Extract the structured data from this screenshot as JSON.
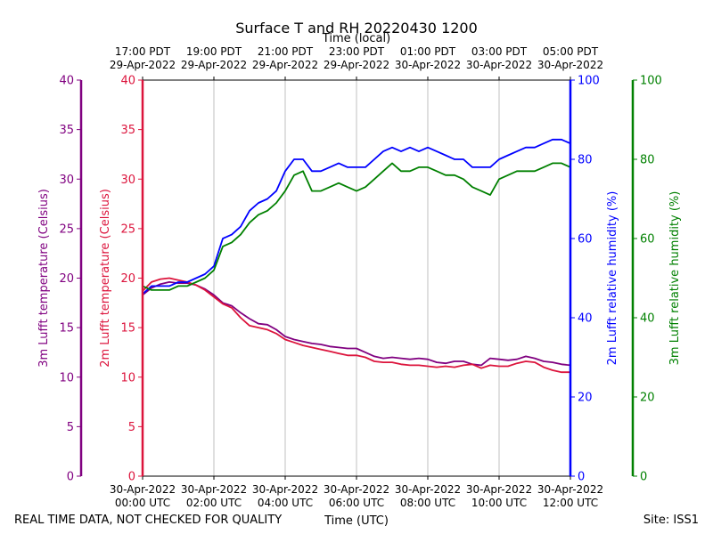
{
  "chart_data": {
    "type": "line",
    "title": "Surface T and RH 20220430 1200",
    "top_xlabel": "Time (local)",
    "xlabel": "Time (UTC)",
    "footer_left": "REAL TIME DATA, NOT CHECKED FOR QUALITY",
    "footer_right": "Site: ISS1",
    "x_hours": [
      0,
      12
    ],
    "bottom_ticks": [
      {
        "date": "30-Apr-2022",
        "time": "00:00 UTC"
      },
      {
        "date": "30-Apr-2022",
        "time": "02:00 UTC"
      },
      {
        "date": "30-Apr-2022",
        "time": "04:00 UTC"
      },
      {
        "date": "30-Apr-2022",
        "time": "06:00 UTC"
      },
      {
        "date": "30-Apr-2022",
        "time": "08:00 UTC"
      },
      {
        "date": "30-Apr-2022",
        "time": "10:00 UTC"
      },
      {
        "date": "30-Apr-2022",
        "time": "12:00 UTC"
      }
    ],
    "top_ticks": [
      {
        "time": "17:00 PDT",
        "date": "29-Apr-2022"
      },
      {
        "time": "19:00 PDT",
        "date": "29-Apr-2022"
      },
      {
        "time": "21:00 PDT",
        "date": "29-Apr-2022"
      },
      {
        "time": "23:00 PDT",
        "date": "29-Apr-2022"
      },
      {
        "time": "01:00 PDT",
        "date": "30-Apr-2022"
      },
      {
        "time": "03:00 PDT",
        "date": "30-Apr-2022"
      },
      {
        "time": "05:00 PDT",
        "date": "30-Apr-2022"
      }
    ],
    "axes": {
      "t3m": {
        "label": "3m Lufft temperature (Celsius)",
        "ylim": [
          0,
          40
        ],
        "ticks": [
          0,
          5,
          10,
          15,
          20,
          25,
          30,
          35,
          40
        ],
        "color": "#800080"
      },
      "t2m": {
        "label": "2m Lufft temperature (Celsius)",
        "ylim": [
          0,
          40
        ],
        "ticks": [
          0,
          5,
          10,
          15,
          20,
          25,
          30,
          35,
          40
        ],
        "color": "#dc143c"
      },
      "rh2m": {
        "label": "2m Lufft relative humidity (%)",
        "ylim": [
          0,
          100
        ],
        "ticks": [
          0,
          20,
          40,
          60,
          80,
          100
        ],
        "color": "#0000ff"
      },
      "rh3m": {
        "label": "3m Lufft relative humidity (%)",
        "ylim": [
          0,
          100
        ],
        "ticks": [
          0,
          20,
          40,
          60,
          80,
          100
        ],
        "color": "#008000"
      }
    },
    "series": [
      {
        "name": "3m Lufft temperature",
        "axis": "t3m",
        "color": "#800080",
        "x": [
          0,
          0.25,
          0.5,
          0.75,
          1,
          1.25,
          1.5,
          1.75,
          2,
          2.25,
          2.5,
          2.75,
          3,
          3.25,
          3.5,
          3.75,
          4,
          4.25,
          4.5,
          4.75,
          5,
          5.25,
          5.5,
          5.75,
          6,
          6.25,
          6.5,
          6.75,
          7,
          7.25,
          7.5,
          7.75,
          8,
          8.25,
          8.5,
          8.75,
          9,
          9.25,
          9.5,
          9.75,
          10,
          10.25,
          10.5,
          10.75,
          11,
          11.25,
          11.5,
          11.75,
          12
        ],
        "values": [
          18.3,
          19.0,
          19.4,
          19.6,
          19.5,
          19.5,
          19.3,
          18.9,
          18.3,
          17.5,
          17.2,
          16.5,
          15.9,
          15.4,
          15.3,
          14.8,
          14.1,
          13.8,
          13.6,
          13.4,
          13.3,
          13.1,
          13.0,
          12.9,
          12.9,
          12.5,
          12.1,
          11.9,
          12.0,
          11.9,
          11.8,
          11.9,
          11.8,
          11.5,
          11.4,
          11.6,
          11.6,
          11.3,
          11.2,
          11.9,
          11.8,
          11.7,
          11.8,
          12.1,
          11.9,
          11.6,
          11.5,
          11.3,
          11.2
        ]
      },
      {
        "name": "2m Lufft temperature",
        "axis": "t2m",
        "color": "#dc143c",
        "x": [
          0,
          0.25,
          0.5,
          0.75,
          1,
          1.25,
          1.5,
          1.75,
          2,
          2.25,
          2.5,
          2.75,
          3,
          3.25,
          3.5,
          3.75,
          4,
          4.25,
          4.5,
          4.75,
          5,
          5.25,
          5.5,
          5.75,
          6,
          6.25,
          6.5,
          6.75,
          7,
          7.25,
          7.5,
          7.75,
          8,
          8.25,
          8.5,
          8.75,
          9,
          9.25,
          9.5,
          9.75,
          10,
          10.25,
          10.5,
          10.75,
          11,
          11.25,
          11.5,
          11.75,
          12
        ],
        "values": [
          18.7,
          19.6,
          19.9,
          20.0,
          19.8,
          19.6,
          19.3,
          18.8,
          18.1,
          17.4,
          17.0,
          16.0,
          15.2,
          15.0,
          14.8,
          14.4,
          13.8,
          13.5,
          13.2,
          13.0,
          12.8,
          12.6,
          12.4,
          12.2,
          12.2,
          12.0,
          11.6,
          11.5,
          11.5,
          11.3,
          11.2,
          11.2,
          11.1,
          11.0,
          11.1,
          11.0,
          11.2,
          11.3,
          10.9,
          11.2,
          11.1,
          11.1,
          11.4,
          11.6,
          11.5,
          11.0,
          10.7,
          10.5,
          10.5
        ]
      },
      {
        "name": "2m Lufft relative humidity",
        "axis": "rh2m",
        "color": "#0000ff",
        "x": [
          0,
          0.25,
          0.5,
          0.75,
          1,
          1.25,
          1.5,
          1.75,
          2,
          2.25,
          2.5,
          2.75,
          3,
          3.25,
          3.5,
          3.75,
          4,
          4.25,
          4.5,
          4.75,
          5,
          5.25,
          5.5,
          5.75,
          6,
          6.25,
          6.5,
          6.75,
          7,
          7.25,
          7.5,
          7.75,
          8,
          8.25,
          8.5,
          8.75,
          9,
          9.25,
          9.5,
          9.75,
          10,
          10.25,
          10.5,
          10.75,
          11,
          11.25,
          11.5,
          11.75,
          12
        ],
        "values": [
          46,
          48,
          48,
          48,
          49,
          49,
          50,
          51,
          53,
          60,
          61,
          63,
          67,
          69,
          70,
          72,
          77,
          80,
          80,
          77,
          77,
          78,
          79,
          78,
          78,
          78,
          80,
          82,
          83,
          82,
          83,
          82,
          83,
          82,
          81,
          80,
          80,
          78,
          78,
          78,
          80,
          81,
          82,
          83,
          83,
          84,
          85,
          85,
          84
        ]
      },
      {
        "name": "3m Lufft relative humidity",
        "axis": "rh3m",
        "color": "#008000",
        "x": [
          0,
          0.25,
          0.5,
          0.75,
          1,
          1.25,
          1.5,
          1.75,
          2,
          2.25,
          2.5,
          2.75,
          3,
          3.25,
          3.5,
          3.75,
          4,
          4.25,
          4.5,
          4.75,
          5,
          5.25,
          5.5,
          5.75,
          6,
          6.25,
          6.5,
          6.75,
          7,
          7.25,
          7.5,
          7.75,
          8,
          8.25,
          8.5,
          8.75,
          9,
          9.25,
          9.5,
          9.75,
          10,
          10.25,
          10.5,
          10.75,
          11,
          11.25,
          11.5,
          11.75,
          12
        ],
        "values": [
          48,
          47,
          47,
          47,
          48,
          48,
          49,
          50,
          52,
          58,
          59,
          61,
          64,
          66,
          67,
          69,
          72,
          76,
          77,
          72,
          72,
          73,
          74,
          73,
          72,
          73,
          75,
          77,
          79,
          77,
          77,
          78,
          78,
          77,
          76,
          76,
          75,
          73,
          72,
          71,
          75,
          76,
          77,
          77,
          77,
          78,
          79,
          79,
          78
        ]
      }
    ]
  }
}
